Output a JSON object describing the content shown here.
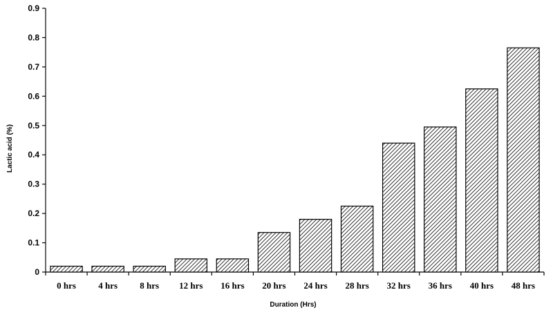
{
  "chart_data": {
    "type": "bar",
    "title": "",
    "xlabel": "Duration (Hrs)",
    "ylabel": "Lactic acid (%)",
    "categories": [
      "0 hrs",
      "4 hrs",
      "8 hrs",
      "12 hrs",
      "16 hrs",
      "20 hrs",
      "24 hrs",
      "28 hrs",
      "32 hrs",
      "36 hrs",
      "40 hrs",
      "48 hrs"
    ],
    "values": [
      0.02,
      0.02,
      0.02,
      0.045,
      0.045,
      0.135,
      0.18,
      0.225,
      0.44,
      0.495,
      0.625,
      0.765
    ],
    "ylim": [
      0,
      0.9
    ],
    "yticks": [
      "0",
      "0.1",
      "0.2",
      "0.3",
      "0.4",
      "0.5",
      "0.6",
      "0.7",
      "0.8",
      "0.9"
    ],
    "grid": false,
    "legend": "none",
    "bar_fill": "diagonal-hatch",
    "colors": {
      "bar_stroke": "#000000",
      "hatch": "#000000",
      "background": "#ffffff"
    }
  }
}
